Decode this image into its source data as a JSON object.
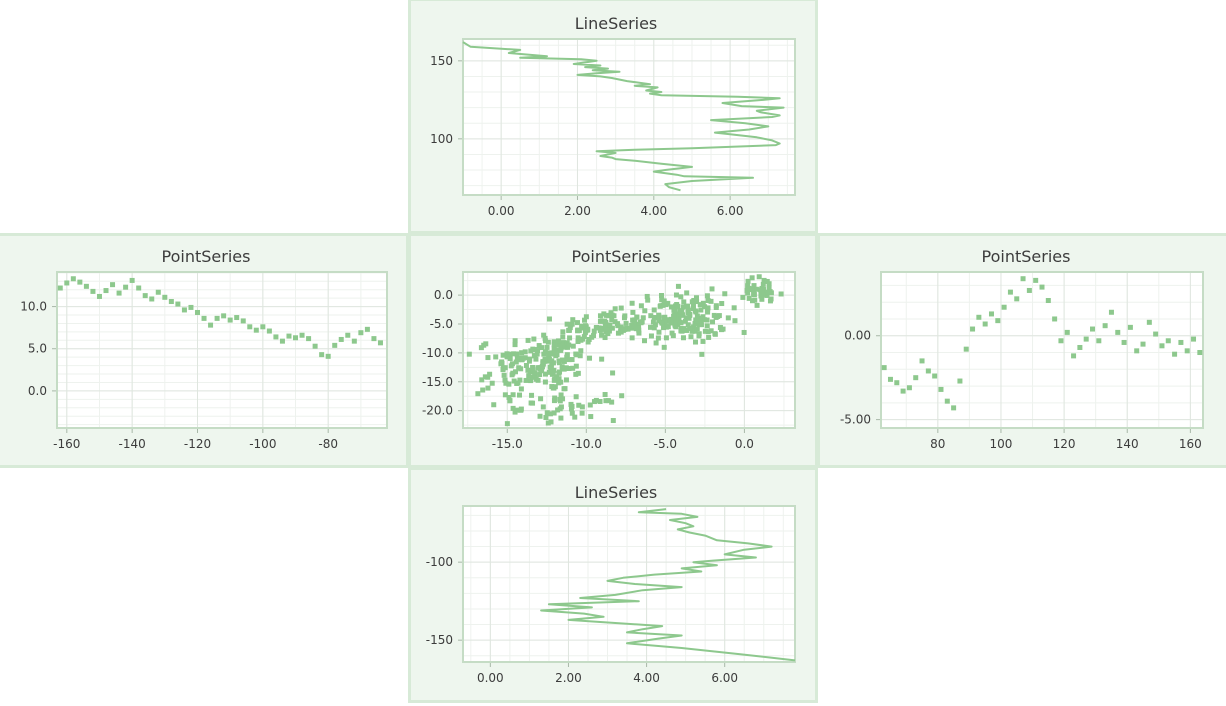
{
  "theme": {
    "panel_bg": "#eef6ee",
    "panel_border": "#d7ead7",
    "plot_bg": "#ffffff",
    "grid": "#dfe6df",
    "minor_grid": "#eef2ee",
    "series": "#8dc88d"
  },
  "chart_data": [
    {
      "id": "top",
      "type": "line",
      "title": "LineSeries",
      "xlabel": "",
      "ylabel": "",
      "xlim": [
        -1.0,
        7.7
      ],
      "ylim": [
        64,
        164
      ],
      "xticks": [
        0,
        2,
        4,
        6
      ],
      "xtick_labels": [
        "0.00",
        "2.00",
        "4.00",
        "6.00"
      ],
      "yticks": [
        100,
        150
      ],
      "ytick_labels": [
        "100",
        "150"
      ],
      "grid": true,
      "series": [
        {
          "x": [
            4.7,
            4.4,
            4.3,
            5.0,
            6.6,
            4.8,
            4.6,
            4.0,
            4.3,
            5.0,
            4.2,
            3.5,
            3.0,
            2.9,
            2.6,
            3.0,
            2.5,
            3.5,
            5.0,
            7.2,
            7.3,
            7.1,
            6.7,
            6.0,
            5.6,
            6.5,
            7.0,
            6.4,
            5.5,
            7.1,
            7.3,
            6.8,
            6.7,
            7.4,
            6.3,
            5.8,
            6.9,
            7.3,
            6.2,
            4.2,
            3.9,
            4.2,
            3.8,
            4.1,
            3.5,
            3.9,
            3.3,
            2.9,
            2.6,
            2.0,
            2.5,
            3.1,
            2.4,
            2.8,
            2.2,
            2.6,
            1.9,
            2.5,
            2.1,
            0.5,
            1.2,
            0.2,
            0.5,
            -0.8,
            -1.0
          ],
          "y": [
            67,
            69,
            71,
            73,
            75,
            76,
            77,
            79,
            80,
            82,
            84,
            86,
            87,
            88,
            89,
            91,
            92,
            93,
            94,
            96,
            97,
            99,
            101,
            103,
            104,
            106,
            108,
            110,
            112,
            114,
            115,
            117,
            118,
            120,
            121,
            123,
            125,
            126,
            127,
            128,
            129,
            130,
            131,
            133,
            134,
            135,
            137,
            139,
            140,
            141,
            142,
            143,
            144,
            145,
            146,
            147,
            148,
            150,
            151,
            152,
            153,
            155,
            157,
            159,
            162
          ]
        }
      ]
    },
    {
      "id": "left",
      "type": "scatter",
      "title": "PointSeries",
      "xlabel": "",
      "ylabel": "",
      "xlim": [
        -163,
        -62
      ],
      "ylim": [
        -4.4,
        14.1
      ],
      "xticks": [
        -160,
        -140,
        -120,
        -100,
        -80
      ],
      "xtick_labels": [
        "-160",
        "-140",
        "-120",
        "-100",
        "-80"
      ],
      "yticks": [
        0,
        5,
        10
      ],
      "ytick_labels": [
        "0.0",
        "5.0",
        "10.0"
      ],
      "grid": true,
      "series": [
        {
          "x": [
            -162,
            -160,
            -158,
            -156,
            -154,
            -152,
            -150,
            -148,
            -146,
            -144,
            -142,
            -140,
            -138,
            -136,
            -134,
            -132,
            -130,
            -128,
            -126,
            -124,
            -122,
            -120,
            -118,
            -116,
            -114,
            -112,
            -110,
            -108,
            -106,
            -104,
            -102,
            -100,
            -98,
            -96,
            -94,
            -92,
            -90,
            -88,
            -86,
            -84,
            -82,
            -80,
            -78,
            -76,
            -74,
            -72,
            -70,
            -68,
            -66,
            -64
          ],
          "y": [
            12.2,
            12.8,
            13.3,
            12.9,
            12.4,
            11.8,
            11.2,
            11.9,
            12.6,
            11.6,
            12.3,
            13.1,
            12.2,
            11.3,
            10.9,
            11.7,
            11.1,
            10.6,
            10.3,
            9.6,
            9.9,
            9.3,
            8.6,
            7.8,
            8.6,
            8.9,
            8.4,
            8.7,
            8.3,
            7.6,
            7.2,
            7.6,
            7.1,
            6.4,
            5.9,
            6.5,
            6.3,
            6.6,
            6.2,
            5.3,
            4.3,
            4.1,
            5.4,
            6.1,
            6.6,
            5.9,
            6.9,
            7.3,
            6.2,
            5.7
          ]
        }
      ]
    },
    {
      "id": "center",
      "type": "scatter",
      "title": "PointSeries",
      "xlabel": "",
      "ylabel": "",
      "xlim": [
        -17.8,
        3.2
      ],
      "ylim": [
        -23,
        4
      ],
      "xticks": [
        -15,
        -10,
        -5,
        0
      ],
      "xtick_labels": [
        "-15.0",
        "-10.0",
        "-5.0",
        "0.0"
      ],
      "yticks": [
        0,
        -5,
        -10,
        -15,
        -20
      ],
      "ytick_labels": [
        "0.0",
        "-5.0",
        "-10.0",
        "-15.0",
        "-20.0"
      ],
      "grid": true,
      "clusters": [
        {
          "cx": -12.5,
          "cy": -11.5,
          "sx": 2.0,
          "sy": 3.6,
          "n": 150
        },
        {
          "cx": -9.0,
          "cy": -5.5,
          "sx": 1.8,
          "sy": 1.8,
          "n": 90
        },
        {
          "cx": -4.0,
          "cy": -4.0,
          "sx": 1.9,
          "sy": 2.9,
          "n": 180
        },
        {
          "cx": -11.0,
          "cy": -19.5,
          "sx": 2.0,
          "sy": 1.4,
          "n": 45
        },
        {
          "cx": 1.0,
          "cy": 0.5,
          "sx": 1.0,
          "sy": 1.8,
          "n": 40
        },
        {
          "cx": -15.0,
          "cy": -14.0,
          "sx": 1.2,
          "sy": 4.0,
          "n": 40
        }
      ]
    },
    {
      "id": "right",
      "type": "scatter",
      "title": "PointSeries",
      "xlabel": "",
      "ylabel": "",
      "xlim": [
        62,
        164
      ],
      "ylim": [
        -5.5,
        3.8
      ],
      "xticks": [
        80,
        100,
        120,
        140,
        160
      ],
      "xtick_labels": [
        "80",
        "100",
        "120",
        "140",
        "160"
      ],
      "yticks": [
        0,
        -5
      ],
      "ytick_labels": [
        "0.00",
        "-5.00"
      ],
      "grid": true,
      "series": [
        {
          "x": [
            63,
            65,
            67,
            69,
            71,
            73,
            75,
            77,
            79,
            81,
            83,
            85,
            87,
            89,
            91,
            93,
            95,
            97,
            99,
            101,
            103,
            105,
            107,
            109,
            111,
            113,
            115,
            117,
            119,
            121,
            123,
            125,
            127,
            129,
            131,
            133,
            135,
            137,
            139,
            141,
            143,
            145,
            147,
            149,
            151,
            153,
            155,
            157,
            159,
            161,
            163
          ],
          "y": [
            -1.9,
            -2.6,
            -2.8,
            -3.3,
            -3.1,
            -2.5,
            -1.5,
            -2.1,
            -2.4,
            -3.2,
            -3.9,
            -4.3,
            -2.7,
            -0.8,
            0.4,
            1.1,
            0.7,
            1.3,
            0.9,
            1.7,
            2.6,
            2.2,
            3.4,
            2.7,
            3.3,
            2.9,
            2.1,
            1.0,
            -0.3,
            0.2,
            -1.2,
            -0.7,
            -0.2,
            0.4,
            -0.3,
            0.6,
            1.4,
            0.2,
            -0.4,
            0.5,
            -0.9,
            -0.5,
            0.8,
            0.1,
            -0.6,
            -0.3,
            -1.1,
            -0.4,
            -0.9,
            -0.2,
            -1.0
          ]
        }
      ]
    },
    {
      "id": "bottom",
      "type": "line",
      "title": "LineSeries",
      "xlabel": "",
      "ylabel": "",
      "xlim": [
        -0.7,
        7.8
      ],
      "ylim": [
        -164,
        -64
      ],
      "xticks": [
        0,
        2,
        4,
        6
      ],
      "xtick_labels": [
        "0.00",
        "2.00",
        "4.00",
        "6.00"
      ],
      "yticks": [
        -100,
        -150
      ],
      "ytick_labels": [
        "-100",
        "-150"
      ],
      "grid": true,
      "series": [
        {
          "x": [
            4.5,
            3.8,
            4.9,
            5.3,
            4.6,
            5.0,
            5.2,
            4.8,
            5.1,
            5.5,
            5.8,
            6.6,
            7.2,
            6.5,
            6.0,
            6.8,
            5.7,
            5.2,
            5.8,
            4.9,
            5.4,
            4.2,
            3.4,
            3.0,
            3.7,
            4.9,
            3.9,
            3.2,
            2.3,
            3.8,
            1.5,
            2.6,
            1.3,
            2.4,
            2.9,
            2.0,
            3.2,
            4.4,
            3.9,
            3.5,
            4.9,
            4.3,
            3.5,
            4.9,
            6.4,
            7.8
          ],
          "y": [
            -66,
            -68,
            -69,
            -71,
            -73,
            -75,
            -77,
            -79,
            -81,
            -83,
            -86,
            -88,
            -90,
            -92,
            -95,
            -97,
            -99,
            -100,
            -102,
            -104,
            -106,
            -108,
            -110,
            -112,
            -114,
            -116,
            -118,
            -121,
            -123,
            -125,
            -127,
            -129,
            -131,
            -133,
            -135,
            -137,
            -139,
            -141,
            -143,
            -145,
            -147,
            -149,
            -152,
            -155,
            -159,
            -163
          ]
        }
      ]
    }
  ]
}
